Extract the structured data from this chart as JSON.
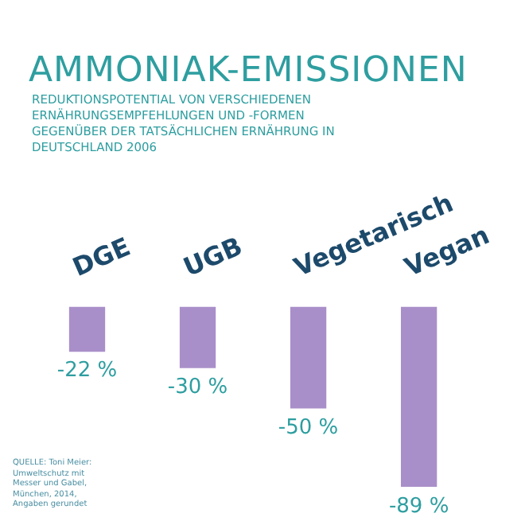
{
  "chart_data": {
    "type": "bar",
    "title": "AMMONIAK-EMISSIONEN",
    "subtitle": "REDUKTIONSPOTENTIAL VON VERSCHIEDENEN ERNÄHRUNGSEMPFEHLUNGEN UND -FORMEN GEGENÜBER DER TATSÄCHLICHEN ERNÄHRUNG IN DEUTSCHLAND 2006",
    "categories": [
      "DGE",
      "UGB",
      "Vegetarisch",
      "Vegan"
    ],
    "values": [
      -22,
      -30,
      -50,
      -89
    ],
    "value_labels": [
      "-22 %",
      "-30 %",
      "-50 %",
      "-89 %"
    ],
    "color": "#a98fc9",
    "annotations": [
      "QUELLE: Toni Meier: Umweltschutz mit Messer und Gabel, München, 2014, Angaben gerundet"
    ],
    "grid": false,
    "legend": false
  }
}
